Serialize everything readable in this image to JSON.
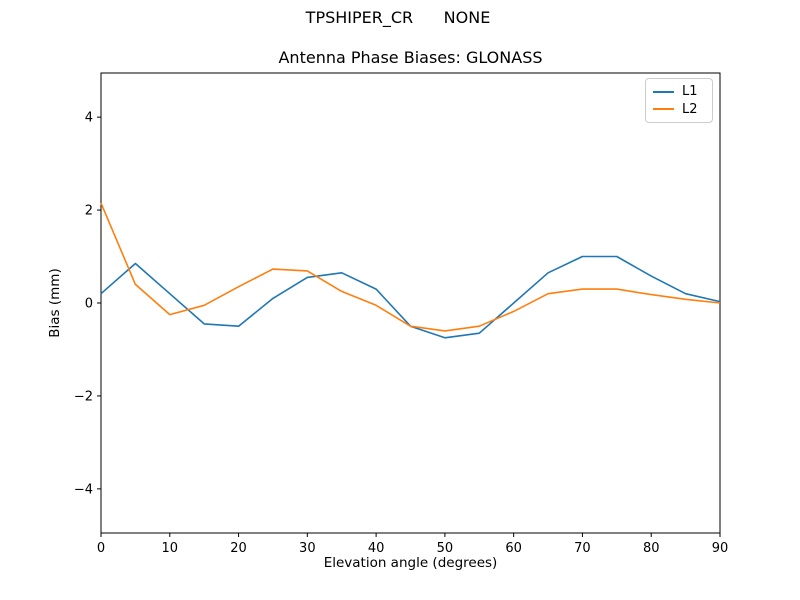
{
  "figure": {
    "suptitle": "TPSHIPER_CR      NONE",
    "title": "Antenna Phase Biases: GLONASS",
    "xlabel": "Elevation angle (degrees)",
    "ylabel": "Bias (mm)"
  },
  "legend": {
    "items": [
      {
        "label": "L1",
        "color": "#1f77b4"
      },
      {
        "label": "L2",
        "color": "#ff7f0e"
      }
    ]
  },
  "chart_data": {
    "type": "line",
    "suptitle": "TPSHIPER_CR      NONE",
    "title": "Antenna Phase Biases: GLONASS",
    "xlabel": "Elevation angle (degrees)",
    "ylabel": "Bias (mm)",
    "x": [
      0,
      5,
      10,
      15,
      20,
      25,
      30,
      35,
      40,
      45,
      50,
      55,
      60,
      65,
      70,
      75,
      80,
      85,
      90
    ],
    "series": [
      {
        "name": "L1",
        "color": "#1f77b4",
        "values": [
          0.2,
          0.85,
          0.2,
          -0.45,
          -0.5,
          0.1,
          0.55,
          0.65,
          0.3,
          -0.5,
          -0.75,
          -0.65,
          0.0,
          0.65,
          1.0,
          1.0,
          0.58,
          0.2,
          0.03
        ]
      },
      {
        "name": "L2",
        "color": "#ff7f0e",
        "values": [
          2.15,
          0.4,
          -0.25,
          -0.05,
          0.35,
          0.73,
          0.69,
          0.25,
          -0.05,
          -0.5,
          -0.6,
          -0.5,
          -0.18,
          0.2,
          0.3,
          0.3,
          0.18,
          0.08,
          0.0
        ]
      }
    ],
    "xlim": [
      0,
      90
    ],
    "ylim": [
      -4.95,
      4.95
    ],
    "xticks": [
      0,
      10,
      20,
      30,
      40,
      50,
      60,
      70,
      80,
      90
    ],
    "yticks": [
      -4,
      -2,
      0,
      2,
      4
    ],
    "grid": false,
    "legend_position": "upper right",
    "line_width": 1.6
  },
  "colors": {
    "axis": "#000000",
    "text": "#000000",
    "background": "#ffffff",
    "legend_border": "#cccccc"
  }
}
